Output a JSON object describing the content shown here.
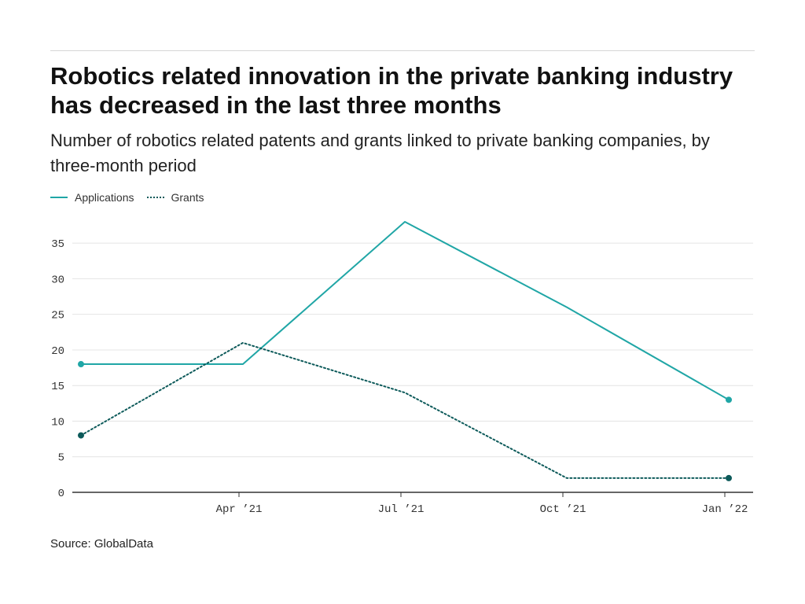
{
  "header": {
    "title": "Robotics related innovation in the private banking industry has decreased in the last three months",
    "subtitle": "Number of robotics related patents and grants linked to private banking companies, by three-month period"
  },
  "legend": {
    "applications_label": "Applications",
    "grants_label": "Grants"
  },
  "footer": {
    "source": "Source: GlobalData"
  },
  "colors": {
    "applications": "#20a6a6",
    "grants": "#0d5a5a",
    "gridline": "#e4e4e4",
    "axis": "#333333"
  },
  "chart_data": {
    "type": "line",
    "title": "Robotics related innovation in the private banking industry has decreased in the last three months",
    "subtitle": "Number of robotics related patents and grants linked to private banking companies, by three-month period",
    "xlabel": "",
    "ylabel": "",
    "x": [
      "2021-01",
      "2021-04",
      "2021-07",
      "2021-10",
      "2022-01"
    ],
    "x_ticks": [
      "2021-04",
      "2021-07",
      "2021-10",
      "2022-01"
    ],
    "x_tick_labels": [
      "Apr ’21",
      "Jul ’21",
      "Oct ’21",
      "Jan ’22"
    ],
    "ylim": [
      0,
      38
    ],
    "y_ticks": [
      0,
      5,
      10,
      15,
      20,
      25,
      30,
      35
    ],
    "grid": true,
    "legend_position": "top-left",
    "series": [
      {
        "name": "Applications",
        "style": "solid",
        "values": [
          18,
          18,
          38,
          26,
          13
        ]
      },
      {
        "name": "Grants",
        "style": "dotted",
        "values": [
          8,
          21,
          14,
          2,
          2
        ]
      }
    ]
  }
}
